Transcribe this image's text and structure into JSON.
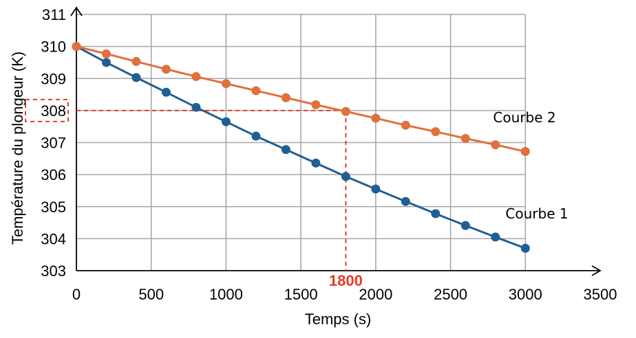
{
  "chart_data": {
    "type": "line",
    "title": "",
    "xlabel": "Temps (s)",
    "ylabel": "Température du plongeur (K)",
    "xlim": [
      0,
      3500
    ],
    "ylim": [
      303,
      311
    ],
    "xticks": [
      0,
      500,
      1000,
      1500,
      2000,
      2500,
      3000,
      3500
    ],
    "yticks": [
      303,
      304,
      305,
      306,
      307,
      308,
      309,
      310,
      311
    ],
    "grid": true,
    "colors": {
      "series1": "#1f5f94",
      "series2": "#e0703e",
      "annotation": "#e53b25",
      "axis": "#000000",
      "grid": "#a6a6a6"
    },
    "series": [
      {
        "name": "Courbe 1",
        "x": [
          0,
          200,
          400,
          600,
          800,
          1000,
          1200,
          1400,
          1600,
          1800,
          2000,
          2200,
          2400,
          2600,
          2800,
          3000
        ],
        "y": [
          310.0,
          309.5,
          309.03,
          308.57,
          308.1,
          307.65,
          307.2,
          306.78,
          306.36,
          305.94,
          305.55,
          305.16,
          304.78,
          304.41,
          304.05,
          303.7
        ]
      },
      {
        "name": "Courbe 2",
        "x": [
          0,
          200,
          400,
          600,
          800,
          1000,
          1200,
          1400,
          1600,
          1800,
          2000,
          2200,
          2400,
          2600,
          2800,
          3000
        ],
        "y": [
          310.0,
          309.77,
          309.53,
          309.29,
          309.06,
          308.84,
          308.62,
          308.4,
          308.18,
          307.97,
          307.76,
          307.54,
          307.34,
          307.13,
          306.93,
          306.72
        ]
      }
    ],
    "annotations": {
      "x_marker": 1800,
      "x_marker_label": "1800",
      "y_marker": 308
    }
  }
}
